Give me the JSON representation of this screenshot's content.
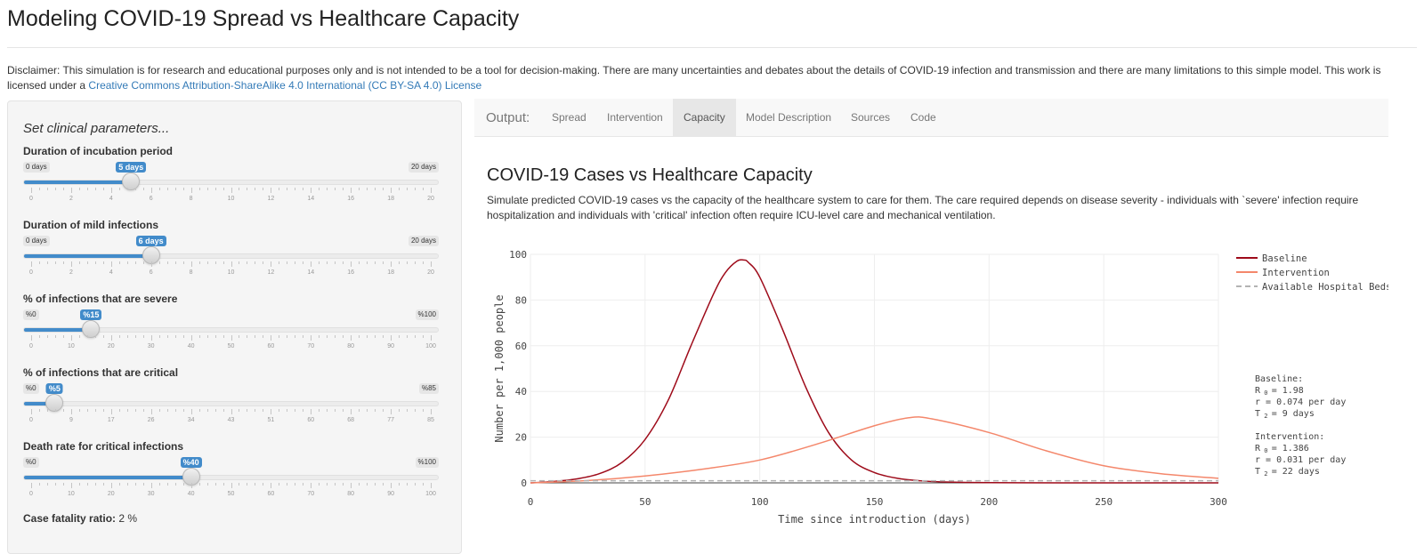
{
  "page": {
    "title": "Modeling COVID-19 Spread vs Healthcare Capacity",
    "disclaimer_text": "Disclaimer: This simulation is for research and educational purposes only and is not intended to be a tool for decision-making. There are many uncertainties and debates about the details of COVID-19 infection and transmission and there are many limitations to this simple model. This work is licensed under a ",
    "license_link": "Creative Commons Attribution-ShareAlike 4.0 International (CC BY-SA 4.0) License"
  },
  "sidebar": {
    "heading": "Set clinical parameters...",
    "sliders": [
      {
        "label": "Duration of incubation period",
        "min_label": "0 days",
        "max_label": "20 days",
        "value_label": "5 days",
        "min": 0,
        "max": 20,
        "value": 5,
        "ticks": [
          "0",
          "2",
          "4",
          "6",
          "8",
          "10",
          "12",
          "14",
          "16",
          "18",
          "20"
        ]
      },
      {
        "label": "Duration of mild infections",
        "min_label": "0 days",
        "max_label": "20 days",
        "value_label": "6 days",
        "min": 0,
        "max": 20,
        "value": 6,
        "ticks": [
          "0",
          "2",
          "4",
          "6",
          "8",
          "10",
          "12",
          "14",
          "16",
          "18",
          "20"
        ]
      },
      {
        "label": "% of infections that are severe",
        "min_label": "%0",
        "max_label": "%100",
        "value_label": "%15",
        "min": 0,
        "max": 100,
        "value": 15,
        "ticks": [
          "0",
          "10",
          "20",
          "30",
          "40",
          "50",
          "60",
          "70",
          "80",
          "90",
          "100"
        ]
      },
      {
        "label": "% of infections that are critical",
        "min_label": "%0",
        "max_label": "%85",
        "value_label": "%5",
        "min": 0,
        "max": 85,
        "value": 5,
        "ticks": [
          "0",
          "9",
          "17",
          "26",
          "34",
          "43",
          "51",
          "60",
          "68",
          "77",
          "85"
        ]
      },
      {
        "label": "Death rate for critical infections",
        "min_label": "%0",
        "max_label": "%100",
        "value_label": "%40",
        "min": 0,
        "max": 100,
        "value": 40,
        "ticks": [
          "0",
          "10",
          "20",
          "30",
          "40",
          "50",
          "60",
          "70",
          "80",
          "90",
          "100"
        ]
      }
    ],
    "cfr_label": "Case fatality ratio:",
    "cfr_value": " 2 %"
  },
  "output": {
    "label": "Output:",
    "tabs": [
      "Spread",
      "Intervention",
      "Capacity",
      "Model Description",
      "Sources",
      "Code"
    ],
    "active_tab": "Capacity",
    "section_title": "COVID-19 Cases vs Healthcare Capacity",
    "section_desc": "Simulate predicted COVID-19 cases vs the capacity of the healthcare system to care for them. The care required depends on disease severity - individuals with `severe' infection require hospitalization and individuals with 'critical' infection often require ICU-level care and mechanical ventilation."
  },
  "colors": {
    "accent": "#428bca",
    "baseline": "#9e0b1a",
    "intervention": "#f4876b",
    "beds": "#b3b3b3"
  },
  "chart_data": {
    "type": "line",
    "title": "",
    "xlabel": "Time since introduction (days)",
    "ylabel": "Number per 1,000 people",
    "xlim": [
      0,
      300
    ],
    "ylim": [
      0,
      100
    ],
    "xticks": [
      0,
      50,
      100,
      150,
      200,
      250,
      300
    ],
    "yticks": [
      0,
      20,
      40,
      60,
      80,
      100
    ],
    "legend_position": "top-right",
    "series": [
      {
        "name": "Baseline",
        "x": [
          0,
          10,
          20,
          30,
          40,
          50,
          60,
          70,
          80,
          85,
          90,
          93,
          95,
          100,
          110,
          120,
          130,
          140,
          150,
          160,
          170,
          180,
          200,
          250,
          300
        ],
        "y": [
          0,
          0.6,
          1.7,
          4,
          9,
          19,
          36,
          60,
          83,
          92,
          97,
          97.5,
          96.5,
          90,
          67,
          42,
          22,
          10,
          4.5,
          2,
          0.9,
          0.4,
          0.1,
          0,
          0
        ]
      },
      {
        "name": "Intervention",
        "x": [
          0,
          25,
          50,
          75,
          100,
          125,
          150,
          165,
          175,
          200,
          225,
          250,
          275,
          300
        ],
        "y": [
          0,
          1,
          3,
          6,
          10,
          17,
          25,
          28.5,
          28,
          22,
          14,
          7.5,
          4,
          2
        ]
      },
      {
        "name": "Available Hospital Beds",
        "x": [
          0,
          300
        ],
        "y": [
          0.9,
          0.9
        ]
      }
    ],
    "annotations": [
      {
        "heading": "Baseline:",
        "r0": "1.98",
        "r": "r = 0.074  per day",
        "t2": "9  days"
      },
      {
        "heading": "Intervention:",
        "r0": "1.386",
        "r": "r = 0.031  per day",
        "t2": "22  days"
      }
    ]
  }
}
